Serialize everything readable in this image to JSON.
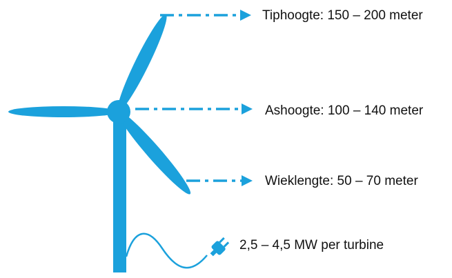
{
  "labels": [
    "Tiphoogte: 150 – 200 meter",
    "Ashoogte: 100 – 140 meter",
    "Wieklengte: 50 – 70 meter",
    "2,5 – 4,5 MW per turbine"
  ]
}
